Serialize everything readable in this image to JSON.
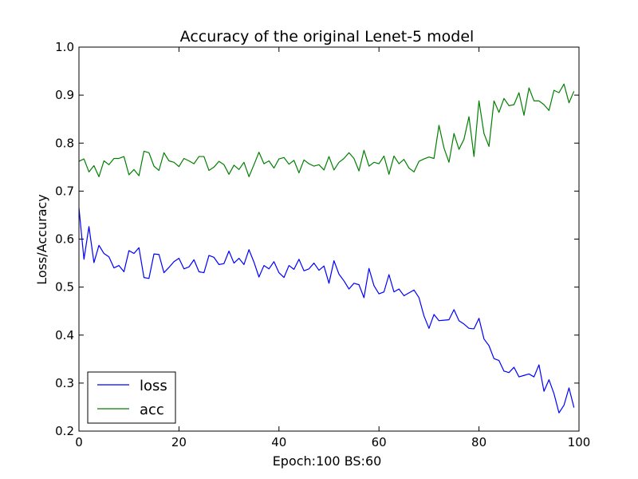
{
  "chart_data": {
    "type": "line",
    "title": "Accuracy of the original Lenet-5 model",
    "xlabel": "Epoch:100 BS:60",
    "ylabel": "Loss/Accuracy",
    "xlim": [
      0,
      100
    ],
    "ylim": [
      0.2,
      1.0
    ],
    "xticks": [
      "0",
      "20",
      "40",
      "60",
      "80",
      "100"
    ],
    "yticks": [
      "0.2",
      "0.3",
      "0.4",
      "0.5",
      "0.6",
      "0.7",
      "0.8",
      "0.9",
      "1.0"
    ],
    "grid": false,
    "legend_position": "lower-left",
    "x": [
      0,
      1,
      2,
      3,
      4,
      5,
      6,
      7,
      8,
      9,
      10,
      11,
      12,
      13,
      14,
      15,
      16,
      17,
      18,
      19,
      20,
      21,
      22,
      23,
      24,
      25,
      26,
      27,
      28,
      29,
      30,
      31,
      32,
      33,
      34,
      35,
      36,
      37,
      38,
      39,
      40,
      41,
      42,
      43,
      44,
      45,
      46,
      47,
      48,
      49,
      50,
      51,
      52,
      53,
      54,
      55,
      56,
      57,
      58,
      59,
      60,
      61,
      62,
      63,
      64,
      65,
      66,
      67,
      68,
      69,
      70,
      71,
      72,
      73,
      74,
      75,
      76,
      77,
      78,
      79,
      80,
      81,
      82,
      83,
      84,
      85,
      86,
      87,
      88,
      89,
      90,
      91,
      92,
      93,
      94,
      95,
      96,
      97,
      98,
      99
    ],
    "series": [
      {
        "name": "loss",
        "color": "#0000ff",
        "values": [
          0.665,
          0.558,
          0.626,
          0.551,
          0.587,
          0.57,
          0.563,
          0.54,
          0.545,
          0.532,
          0.576,
          0.57,
          0.582,
          0.52,
          0.518,
          0.569,
          0.568,
          0.53,
          0.541,
          0.553,
          0.56,
          0.538,
          0.542,
          0.557,
          0.532,
          0.53,
          0.566,
          0.562,
          0.547,
          0.549,
          0.575,
          0.55,
          0.56,
          0.547,
          0.578,
          0.552,
          0.521,
          0.545,
          0.538,
          0.553,
          0.53,
          0.52,
          0.545,
          0.537,
          0.558,
          0.534,
          0.538,
          0.55,
          0.535,
          0.544,
          0.508,
          0.555,
          0.527,
          0.513,
          0.496,
          0.508,
          0.505,
          0.478,
          0.539,
          0.503,
          0.486,
          0.49,
          0.526,
          0.49,
          0.496,
          0.482,
          0.488,
          0.494,
          0.478,
          0.44,
          0.414,
          0.443,
          0.43,
          0.431,
          0.432,
          0.453,
          0.43,
          0.423,
          0.414,
          0.413,
          0.435,
          0.392,
          0.378,
          0.351,
          0.347,
          0.325,
          0.322,
          0.333,
          0.313,
          0.316,
          0.319,
          0.313,
          0.338,
          0.283,
          0.307,
          0.278,
          0.238,
          0.254,
          0.29,
          0.249
        ]
      },
      {
        "name": "acc",
        "color": "#008000",
        "values": [
          0.762,
          0.767,
          0.74,
          0.753,
          0.73,
          0.763,
          0.755,
          0.768,
          0.768,
          0.772,
          0.734,
          0.745,
          0.732,
          0.783,
          0.78,
          0.752,
          0.743,
          0.78,
          0.763,
          0.76,
          0.751,
          0.768,
          0.763,
          0.757,
          0.772,
          0.772,
          0.743,
          0.75,
          0.762,
          0.755,
          0.735,
          0.754,
          0.745,
          0.76,
          0.73,
          0.755,
          0.781,
          0.757,
          0.763,
          0.748,
          0.767,
          0.77,
          0.756,
          0.764,
          0.738,
          0.765,
          0.757,
          0.752,
          0.755,
          0.744,
          0.772,
          0.744,
          0.76,
          0.768,
          0.78,
          0.768,
          0.742,
          0.785,
          0.752,
          0.76,
          0.757,
          0.773,
          0.735,
          0.773,
          0.757,
          0.766,
          0.748,
          0.74,
          0.762,
          0.767,
          0.771,
          0.768,
          0.837,
          0.79,
          0.76,
          0.82,
          0.787,
          0.808,
          0.855,
          0.772,
          0.888,
          0.82,
          0.793,
          0.888,
          0.864,
          0.893,
          0.878,
          0.88,
          0.905,
          0.858,
          0.915,
          0.888,
          0.888,
          0.88,
          0.868,
          0.91,
          0.905,
          0.923,
          0.884,
          0.908
        ]
      }
    ]
  }
}
